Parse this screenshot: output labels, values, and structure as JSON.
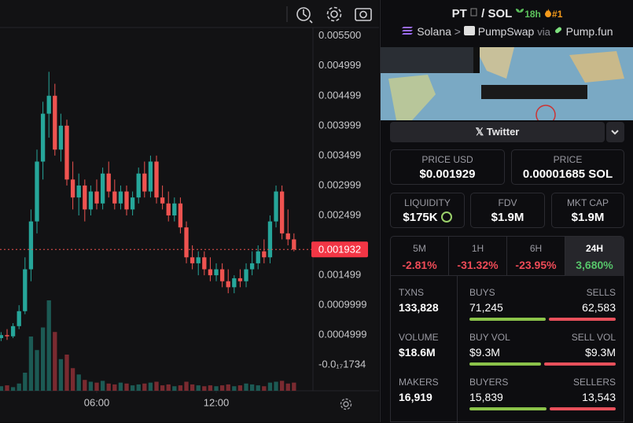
{
  "chart_data": {
    "type": "candlestick",
    "open": [
      0.00045,
      0.0005,
      0.00048,
      0.00065,
      0.0009,
      0.0016,
      0.0024,
      0.0034,
      0.0042,
      0.0045,
      0.0036,
      0.004,
      0.0031,
      0.0028,
      0.003,
      0.0026,
      0.0029,
      0.0027,
      0.0032,
      0.0029,
      0.0027,
      0.0029,
      0.0026,
      0.0028,
      0.0032,
      0.0029,
      0.0034,
      0.0028,
      0.0027,
      0.0025,
      0.0027,
      0.0023,
      0.0018,
      0.0017,
      0.0018,
      0.0016,
      0.0015,
      0.0016,
      0.0014,
      0.0013,
      0.00145,
      0.0014,
      0.0016,
      0.0017,
      0.0019,
      0.0018,
      0.0024,
      0.0029,
      0.0022,
      0.0021
    ],
    "high": [
      0.00055,
      0.0006,
      0.0007,
      0.001,
      0.0018,
      0.0026,
      0.0036,
      0.0044,
      0.0049,
      0.0047,
      0.0042,
      0.0041,
      0.0034,
      0.0032,
      0.0031,
      0.003,
      0.0031,
      0.0033,
      0.0034,
      0.0031,
      0.003,
      0.003,
      0.0029,
      0.0033,
      0.0034,
      0.0035,
      0.0035,
      0.003,
      0.0029,
      0.0028,
      0.0028,
      0.0024,
      0.002,
      0.0019,
      0.0019,
      0.0018,
      0.0017,
      0.0017,
      0.0016,
      0.0015,
      0.0016,
      0.0017,
      0.0019,
      0.002,
      0.0021,
      0.0025,
      0.003,
      0.003,
      0.0026,
      0.0022
    ],
    "low": [
      0.0004,
      0.00042,
      0.00045,
      0.0006,
      0.00085,
      0.0014,
      0.0022,
      0.0031,
      0.0038,
      0.0035,
      0.0034,
      0.003,
      0.0026,
      0.0025,
      0.0024,
      0.0025,
      0.0026,
      0.0026,
      0.0028,
      0.0026,
      0.0026,
      0.0025,
      0.0025,
      0.0027,
      0.0028,
      0.0028,
      0.0027,
      0.0026,
      0.0024,
      0.0024,
      0.0022,
      0.0017,
      0.0016,
      0.0015,
      0.0015,
      0.0014,
      0.0014,
      0.0013,
      0.0012,
      0.0012,
      0.0013,
      0.0013,
      0.0015,
      0.0016,
      0.0017,
      0.0017,
      0.0023,
      0.0021,
      0.002,
      0.0019
    ],
    "close": [
      0.0005,
      0.00048,
      0.00065,
      0.0009,
      0.0016,
      0.0024,
      0.0034,
      0.0042,
      0.0045,
      0.0036,
      0.004,
      0.0031,
      0.0028,
      0.003,
      0.0026,
      0.0029,
      0.0027,
      0.0032,
      0.0029,
      0.0027,
      0.0029,
      0.0026,
      0.0028,
      0.0032,
      0.0029,
      0.0034,
      0.0028,
      0.0027,
      0.0025,
      0.0027,
      0.0023,
      0.0018,
      0.0017,
      0.0018,
      0.0016,
      0.0015,
      0.0016,
      0.0014,
      0.0013,
      0.00145,
      0.0014,
      0.0016,
      0.0017,
      0.0019,
      0.0018,
      0.0024,
      0.0029,
      0.0022,
      0.0021,
      0.001932
    ],
    "volume": [
      5,
      6,
      4,
      8,
      20,
      60,
      45,
      70,
      100,
      65,
      35,
      40,
      25,
      18,
      12,
      10,
      9,
      11,
      8,
      7,
      9,
      8,
      6,
      7,
      8,
      9,
      10,
      6,
      7,
      5,
      6,
      10,
      7,
      6,
      5,
      6,
      5,
      6,
      7,
      5,
      6,
      8,
      7,
      6,
      5,
      9,
      10,
      11,
      8,
      9
    ],
    "up_color": "#26a69a",
    "down_color": "#ef5350",
    "up_volume_color": "#1c5a54",
    "down_volume_color": "#7a2a30",
    "ylim": [
      -0.00043,
      0.0061
    ],
    "xlim": [
      -0.184,
      52.18
    ],
    "yticks": [
      {
        "value": 0.0055,
        "label": "0.005500"
      },
      0.004999,
      0.004499,
      0.003999,
      0.003499,
      0.002999,
      0.002499,
      0.001499,
      0.0009999,
      0.0004999,
      {
        "value": -1.734e-18,
        "label": "-0.0₁₇1734"
      }
    ],
    "xticks": [
      {
        "value": 16,
        "label": "06:00"
      },
      {
        "value": 36,
        "label": "12:00"
      }
    ],
    "last_price": 0.001932
  },
  "header": {
    "base": "PT",
    "sep": "/",
    "quote": "SOL",
    "age": "18h",
    "rank": "#1"
  },
  "breadcrumb": {
    "chain": "Solana",
    "arrow": ">",
    "dex": "PumpSwap",
    "via": "via",
    "launchpad": "Pump.fun"
  },
  "social": {
    "twitter": "Twitter"
  },
  "prices": [
    {
      "label": "PRICE USD",
      "value": "$0.001929"
    },
    {
      "label": "PRICE",
      "value": "0.00001685 SOL"
    }
  ],
  "metrics": [
    {
      "label": "LIQUIDITY",
      "value": "$175K"
    },
    {
      "label": "FDV",
      "value": "$1.9M"
    },
    {
      "label": "MKT CAP",
      "value": "$1.9M"
    }
  ],
  "timeframes": [
    {
      "label": "5M",
      "change": "-2.81%"
    },
    {
      "label": "1H",
      "change": "-31.32%"
    },
    {
      "label": "6H",
      "change": "-23.95%"
    },
    {
      "label": "24H",
      "change": "3,680%"
    }
  ],
  "active_timeframe": 3,
  "stats": [
    {
      "label": "TXNS",
      "value": "133,828",
      "left_label": "BUYS",
      "left_value": "71,245",
      "right_label": "SELLS",
      "right_value": "62,583"
    },
    {
      "label": "VOLUME",
      "value": "$18.6M",
      "left_label": "BUY VOL",
      "left_value": "$9.3M",
      "right_label": "SELL VOL",
      "right_value": "$9.3M"
    },
    {
      "label": "MAKERS",
      "value": "16,919",
      "left_label": "BUYERS",
      "left_value": "15,839",
      "right_label": "SELLERS",
      "right_value": "13,543"
    }
  ]
}
